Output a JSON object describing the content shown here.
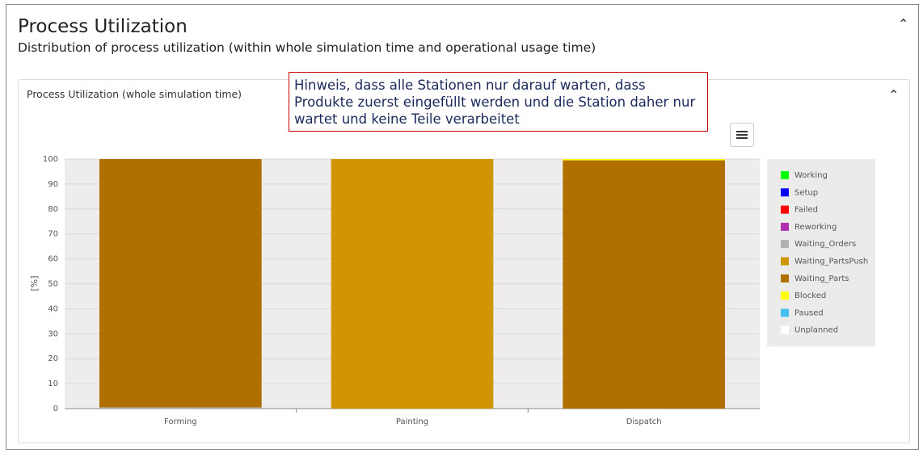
{
  "header": {
    "title": "Process Utilization",
    "subtitle": "Distribution of process utilization (within whole simulation time and operational usage time)"
  },
  "panel": {
    "title": "Process Utilization (whole simulation time)"
  },
  "annotation": "Hinweis, dass alle Stationen nur darauf warten, dass Produkte zuerst eingefüllt werden und die Station daher nur wartet und keine Teile verarbeitet",
  "chart_data": {
    "type": "stacked_bar",
    "ylabel": "[%]",
    "categories": [
      "Forming",
      "Painting",
      "Dispatch"
    ],
    "series": [
      {
        "name": "Working",
        "color": "#00ff00",
        "values": [
          0,
          0,
          0
        ]
      },
      {
        "name": "Setup",
        "color": "#0000ff",
        "values": [
          0,
          0,
          0
        ]
      },
      {
        "name": "Failed",
        "color": "#ff0000",
        "values": [
          0,
          0,
          0
        ]
      },
      {
        "name": "Reworking",
        "color": "#b030b0",
        "values": [
          0,
          0,
          0
        ]
      },
      {
        "name": "Waiting_Orders",
        "color": "#b0b0b0",
        "values": [
          0.5,
          0,
          0
        ]
      },
      {
        "name": "Waiting_PartsPush",
        "color": "#d09500",
        "values": [
          0,
          100,
          0
        ]
      },
      {
        "name": "Waiting_Parts",
        "color": "#b07000",
        "values": [
          99.5,
          0,
          99.5
        ]
      },
      {
        "name": "Blocked",
        "color": "#ffff00",
        "values": [
          0,
          0,
          0.5
        ]
      },
      {
        "name": "Paused",
        "color": "#40c0f0",
        "values": [
          0,
          0,
          0
        ]
      },
      {
        "name": "Unplanned",
        "color": "#ffffff",
        "values": [
          0,
          0,
          0
        ]
      }
    ],
    "ylim": [
      0,
      100
    ],
    "yticks": [
      0,
      10,
      20,
      30,
      40,
      50,
      60,
      70,
      80,
      90,
      100
    ],
    "grid": true
  }
}
